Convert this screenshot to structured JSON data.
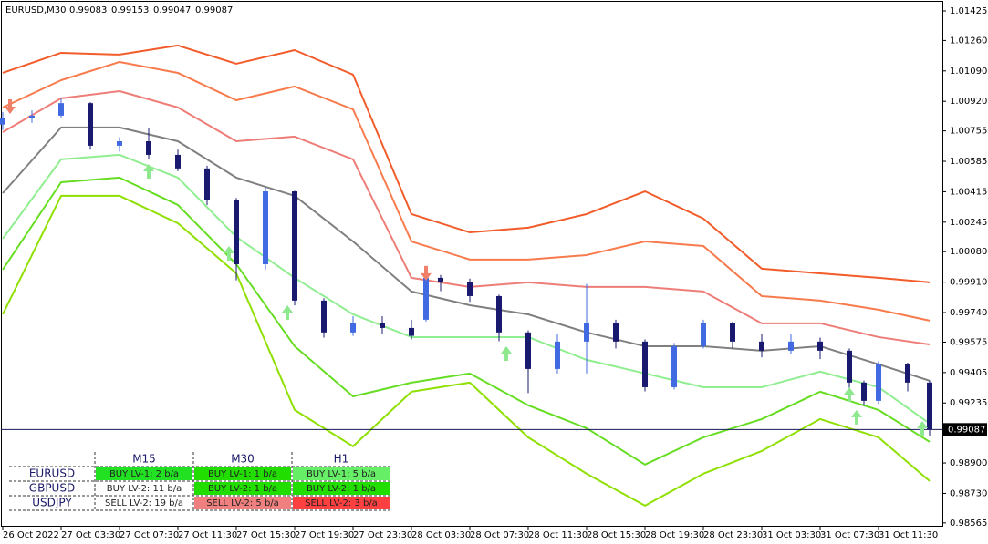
{
  "chart_data": {
    "type": "candlestick",
    "title": "EURUSD,M30",
    "ohlc": [
      0.99083,
      0.99153,
      0.99047,
      0.99087
    ],
    "up_color": "#4169e1",
    "down_color": "#191970",
    "xlim": [
      0,
      128.75
    ],
    "xticks": [
      {
        "value": 0,
        "label": "26 Oct 2022"
      },
      {
        "value": 8,
        "label": "27 Oct 03:30"
      },
      {
        "value": 16,
        "label": "27 Oct 07:30"
      },
      {
        "value": 24,
        "label": "27 Oct 11:30"
      },
      {
        "value": 32,
        "label": "27 Oct 15:30"
      },
      {
        "value": 40,
        "label": "27 Oct 19:30"
      },
      {
        "value": 48,
        "label": "27 Oct 23:30"
      },
      {
        "value": 56,
        "label": "28 Oct 03:30"
      },
      {
        "value": 64,
        "label": "28 Oct 07:30"
      },
      {
        "value": 72,
        "label": "28 Oct 11:30"
      },
      {
        "value": 80,
        "label": "28 Oct 15:30"
      },
      {
        "value": 88,
        "label": "28 Oct 19:30"
      },
      {
        "value": 96,
        "label": "28 Oct 23:30"
      },
      {
        "value": 104,
        "label": "31 Oct 03:30"
      },
      {
        "value": 112,
        "label": "31 Oct 07:30"
      },
      {
        "value": 120,
        "label": "31 Oct 11:30"
      }
    ],
    "ylim": [
      0.98544,
      1.01486
    ],
    "yticks": [
      1.01425,
      {
        "value": 1.0126,
        "label": "1.01260"
      },
      {
        "value": 1.0109,
        "label": "1.01090"
      },
      {
        "value": 1.0092,
        "label": "1.00920"
      },
      1.00755,
      1.00585,
      1.00415,
      1.00245,
      {
        "value": 1.0008,
        "label": "1.00080"
      },
      {
        "value": 0.9991,
        "label": "0.99910"
      },
      {
        "value": 0.9974,
        "label": "0.99740"
      },
      0.99575,
      0.99405,
      0.99235,
      {
        "value": 0.9907,
        "label": "0.99070"
      },
      {
        "value": 0.989,
        "label": "0.98900"
      },
      {
        "value": 0.9873,
        "label": "0.98730"
      },
      0.98565
    ],
    "last_price": 0.99087,
    "candles": {
      "x": [
        0,
        4,
        8,
        12,
        16,
        20,
        24,
        28,
        32,
        36,
        40,
        44,
        48,
        52,
        56,
        58,
        60,
        64,
        68,
        72,
        76,
        80,
        84,
        88,
        92,
        96,
        100,
        104,
        108,
        112,
        116,
        118,
        120,
        124,
        127
      ],
      "open": [
        1.0079,
        1.00825,
        1.0084,
        1.0091,
        1.00672,
        1.00697,
        1.00621,
        1.00545,
        1.00367,
        1.0001,
        1.00417,
        0.99807,
        0.99629,
        0.9968,
        0.99654,
        0.997,
        0.99934,
        0.99909,
        0.99832,
        0.99629,
        0.99425,
        0.99578,
        0.9968,
        0.99578,
        0.99323,
        0.99552,
        0.9968,
        0.99578,
        0.99527,
        0.99578,
        0.99527,
        0.99349,
        0.99247,
        0.99451,
        0.99349
      ],
      "high": [
        1.0086,
        1.0087,
        1.00935,
        1.00915,
        1.0072,
        1.0077,
        1.0065,
        1.0056,
        1.0038,
        1.0044,
        1.0042,
        0.9982,
        0.9972,
        0.9972,
        0.997,
        0.9996,
        0.9995,
        0.9993,
        0.9984,
        0.9964,
        0.9962,
        0.999,
        0.997,
        0.9959,
        0.9957,
        0.997,
        0.9969,
        0.9962,
        0.9962,
        0.996,
        0.9954,
        0.9936,
        0.9947,
        0.9946,
        0.9936
      ],
      "low": [
        1.0076,
        1.008,
        1.0083,
        1.0065,
        1.0064,
        1.006,
        1.0053,
        1.0034,
        0.9992,
        0.9998,
        0.9978,
        0.996,
        0.9961,
        0.9962,
        0.9959,
        0.9969,
        0.9986,
        0.998,
        0.9958,
        0.9929,
        0.994,
        0.994,
        0.9954,
        0.993,
        0.9931,
        0.9954,
        0.9954,
        0.9949,
        0.9951,
        0.9948,
        0.9932,
        0.9922,
        0.9923,
        0.993,
        0.9905
      ],
      "close": [
        1.00825,
        1.0084,
        1.0091,
        1.00672,
        1.00697,
        1.00621,
        1.00545,
        1.00367,
        1.0001,
        1.00417,
        0.99807,
        0.99629,
        0.9968,
        0.99654,
        0.9961,
        0.99934,
        0.99909,
        0.99832,
        0.99629,
        0.99425,
        0.99578,
        0.9968,
        0.99578,
        0.99323,
        0.99552,
        0.9968,
        0.99578,
        0.99527,
        0.99578,
        0.99527,
        0.99349,
        0.99247,
        0.99451,
        0.99349,
        0.99087
      ]
    },
    "x": [
      0,
      8,
      16,
      24,
      32,
      40,
      48,
      56,
      64,
      72,
      80,
      88,
      96,
      104,
      112,
      120,
      127
    ],
    "series": [
      {
        "color": "#f25c2a",
        "values": [
          1.01079,
          1.01191,
          1.01181,
          1.01232,
          1.0113,
          1.01206,
          1.01069,
          1.0029,
          1.00188,
          1.00214,
          1.0029,
          1.00417,
          1.00265,
          0.99985,
          0.99959,
          0.99934,
          0.99909
        ]
      },
      {
        "color": "#f77b4d",
        "values": [
          1.00886,
          1.01038,
          1.0114,
          1.01079,
          1.00926,
          1.01003,
          1.00875,
          1.00137,
          1.00036,
          1.00036,
          1.00061,
          1.00137,
          1.00112,
          0.99832,
          0.99807,
          0.99756,
          0.99695
        ]
      },
      {
        "color": "#ee7d78",
        "values": [
          1.00748,
          1.00937,
          1.00977,
          1.00886,
          1.00697,
          1.00723,
          1.00596,
          0.99934,
          0.99883,
          0.99909,
          0.99883,
          0.99883,
          0.99858,
          0.9968,
          0.9968,
          0.99603,
          0.99562
        ]
      },
      {
        "color": "#808080",
        "values": [
          1.00407,
          1.00774,
          1.00774,
          1.00697,
          1.00494,
          1.00392,
          1.00137,
          0.99858,
          0.99781,
          0.9973,
          0.99629,
          0.99552,
          0.99552,
          0.99527,
          0.99552,
          0.99451,
          0.99359
        ]
      },
      {
        "color": "#90ee90",
        "values": [
          1.00153,
          1.00596,
          1.00621,
          1.00494,
          1.00163,
          0.99934,
          0.9973,
          0.99603,
          0.99603,
          0.99603,
          0.99476,
          0.994,
          0.99323,
          0.99323,
          0.9941,
          0.99323,
          0.9912
        ]
      },
      {
        "color": "#66dd22",
        "values": [
          0.9998,
          1.00468,
          1.00494,
          1.00341,
          1.0001,
          0.99552,
          0.99272,
          0.99349,
          0.994,
          0.99222,
          0.99094,
          0.98891,
          0.99043,
          0.99145,
          0.99298,
          0.99196,
          0.99018
        ]
      },
      {
        "color": "#8fe000",
        "values": [
          0.9973,
          1.00392,
          1.00392,
          1.00239,
          0.99959,
          0.99196,
          0.98993,
          0.99298,
          0.99349,
          0.99043,
          0.9884,
          0.98662,
          0.9884,
          0.98967,
          0.99145,
          0.99043,
          0.98799
        ]
      }
    ],
    "up_arrows": {
      "color": "#8ee88e",
      "x": [
        20,
        31,
        39,
        69,
        116,
        117,
        126
      ],
      "values": [
        1.0057,
        1.00112,
        0.99781,
        0.99552,
        0.99323,
        0.99196,
        0.99135
      ]
    },
    "down_arrows": {
      "color": "#f0806a",
      "x": [
        1,
        58
      ],
      "values": [
        1.0085,
        0.99919
      ]
    },
    "signal_table": {
      "columns": [
        "M15",
        "M30",
        "H1"
      ],
      "rows": [
        {
          "name": "EURUSD",
          "cells": [
            {
              "text": "BUY LV-1: 2 b/a",
              "color": "#22e022"
            },
            {
              "text": "BUY LV-1: 1 b/a",
              "color": "#22dd00"
            },
            {
              "text": "BUY LV-1: 5 b/a",
              "color": "#66ee66"
            }
          ]
        },
        {
          "name": "GBPUSD",
          "cells": [
            {
              "text": "BUY LV-2: 11 b/a",
              "color": "#ffffff"
            },
            {
              "text": "BUY LV-2: 1 b/a",
              "color": "#22dd00"
            },
            {
              "text": "BUY LV-2: 1 b/a",
              "color": "#22dd00"
            }
          ]
        },
        {
          "name": "USDJPY",
          "cells": [
            {
              "text": "SELL LV-2: 19 b/a",
              "color": "#ffffff"
            },
            {
              "text": "SELL LV-2: 5 b/a",
              "color": "#f08080"
            },
            {
              "text": "SELL LV-2: 3 b/a",
              "color": "#ff4040"
            }
          ]
        }
      ]
    }
  }
}
